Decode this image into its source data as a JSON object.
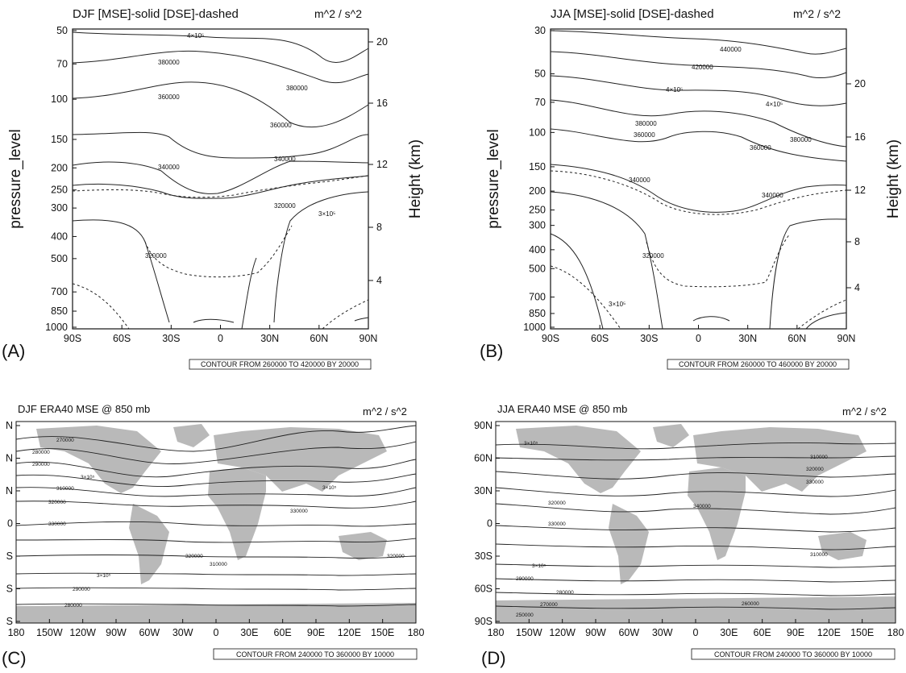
{
  "panels": [
    {
      "id": "A",
      "letter": "(A)",
      "title": "DJF  [MSE]-solid  [DSE]-dashed",
      "units": "m^2 / s^2",
      "ylabel": "pressure_level",
      "y2label": "Height (km)",
      "pressure_ticks": [
        "50",
        "70",
        "100",
        "150",
        "200",
        "250",
        "300",
        "400",
        "500",
        "700",
        "850",
        "1000"
      ],
      "height_ticks": [
        "20",
        "16",
        "12",
        "8",
        "4"
      ],
      "x_ticks": [
        "90S",
        "60S",
        "30S",
        "0",
        "30N",
        "60N",
        "90N"
      ],
      "contour_labels": [
        "4×10⁵",
        "380000",
        "380000",
        "360000",
        "360000",
        "340000",
        "340000",
        "320000",
        "320000",
        "3×10⁵"
      ],
      "footer": "CONTOUR FROM 260000 TO 420000 BY 20000"
    },
    {
      "id": "B",
      "letter": "(B)",
      "title": "JJA  [MSE]-solid  [DSE]-dashed",
      "units": "m^2 / s^2",
      "ylabel": "pressure_level",
      "y2label": "Height (km)",
      "pressure_ticks": [
        "30",
        "50",
        "70",
        "100",
        "150",
        "200",
        "250",
        "300",
        "400",
        "500",
        "700",
        "850",
        "1000"
      ],
      "height_ticks": [
        "20",
        "16",
        "12",
        "8",
        "4"
      ],
      "x_ticks": [
        "90S",
        "60S",
        "30S",
        "0",
        "30N",
        "60N",
        "90N"
      ],
      "contour_labels": [
        "440000",
        "420000",
        "4×10⁵",
        "4×10⁵",
        "380000",
        "380000",
        "360000",
        "360000",
        "340000",
        "340000",
        "320000",
        "3×10⁵"
      ],
      "footer": "CONTOUR FROM 260000 TO 460000 BY 20000"
    },
    {
      "id": "C",
      "letter": "(C)",
      "title": "DJF ERA40 MSE @ 850 mb",
      "units": "m^2 / s^2",
      "y_ticks": [
        "N",
        "N",
        "N",
        "0",
        "S",
        "S",
        "S"
      ],
      "x_ticks": [
        "180",
        "150W",
        "120W",
        "90W",
        "60W",
        "30W",
        "0",
        "30E",
        "60E",
        "90E",
        "120E",
        "150E",
        "180"
      ],
      "contour_labels": [
        "270000",
        "280000",
        "290000",
        "3×10⁵",
        "310000",
        "320000",
        "330000",
        "320000",
        "310000",
        "3×10⁵",
        "290000",
        "280000",
        "330000",
        "320000",
        "3×10⁵"
      ],
      "footer": "CONTOUR FROM 240000 TO 360000 BY 10000"
    },
    {
      "id": "D",
      "letter": "(D)",
      "title": "JJA ERA40 MSE @ 850 mb",
      "units": "m^2 / s^2",
      "y_ticks": [
        "90N",
        "60N",
        "30N",
        "0",
        "30S",
        "60S",
        "90S"
      ],
      "x_ticks": [
        "180",
        "150W",
        "120W",
        "90W",
        "60W",
        "30W",
        "0",
        "30E",
        "60E",
        "90E",
        "120E",
        "150E",
        "180"
      ],
      "contour_labels": [
        "3×10⁵",
        "310000",
        "320000",
        "330000",
        "340000",
        "330000",
        "320000",
        "310000",
        "3×10⁵",
        "290000",
        "280000",
        "270000",
        "250000",
        "260000"
      ],
      "footer": "CONTOUR FROM 240000 TO 360000 BY 10000"
    }
  ],
  "chart_data": [
    {
      "type": "contour",
      "title": "DJF  [MSE]-solid  [DSE]-dashed",
      "units": "m^2 / s^2",
      "xlabel": "",
      "ylabel": "pressure_level",
      "y2label": "Height (km)",
      "x": [
        "90S",
        "60S",
        "30S",
        "0",
        "30N",
        "60N",
        "90N"
      ],
      "pressure_levels": [
        50,
        70,
        100,
        150,
        200,
        250,
        300,
        400,
        500,
        700,
        850,
        1000
      ],
      "height_km": [
        4,
        8,
        12,
        16,
        20
      ],
      "contour_range": [
        260000,
        420000
      ],
      "contour_interval": 20000,
      "series": [
        {
          "name": "[MSE]",
          "style": "solid"
        },
        {
          "name": "[DSE]",
          "style": "dashed"
        }
      ]
    },
    {
      "type": "contour",
      "title": "JJA  [MSE]-solid  [DSE]-dashed",
      "units": "m^2 / s^2",
      "ylabel": "pressure_level",
      "y2label": "Height (km)",
      "x": [
        "90S",
        "60S",
        "30S",
        "0",
        "30N",
        "60N",
        "90N"
      ],
      "pressure_levels": [
        30,
        50,
        70,
        100,
        150,
        200,
        250,
        300,
        400,
        500,
        700,
        850,
        1000
      ],
      "height_km": [
        4,
        8,
        12,
        16,
        20
      ],
      "contour_range": [
        260000,
        460000
      ],
      "contour_interval": 20000,
      "series": [
        {
          "name": "[MSE]",
          "style": "solid"
        },
        {
          "name": "[DSE]",
          "style": "dashed"
        }
      ]
    },
    {
      "type": "contour-map",
      "title": "DJF ERA40 MSE @ 850 mb",
      "units": "m^2 / s^2",
      "x": [
        "180",
        "150W",
        "120W",
        "90W",
        "60W",
        "30W",
        "0",
        "30E",
        "60E",
        "90E",
        "120E",
        "150E",
        "180"
      ],
      "contour_range": [
        240000,
        360000
      ],
      "contour_interval": 10000
    },
    {
      "type": "contour-map",
      "title": "JJA ERA40 MSE @ 850 mb",
      "units": "m^2 / s^2",
      "x": [
        "180",
        "150W",
        "120W",
        "90W",
        "60W",
        "30W",
        "0",
        "30E",
        "60E",
        "90E",
        "120E",
        "150E",
        "180"
      ],
      "y": [
        "90N",
        "60N",
        "30N",
        "0",
        "30S",
        "60S",
        "90S"
      ],
      "contour_range": [
        240000,
        360000
      ],
      "contour_interval": 10000
    }
  ]
}
